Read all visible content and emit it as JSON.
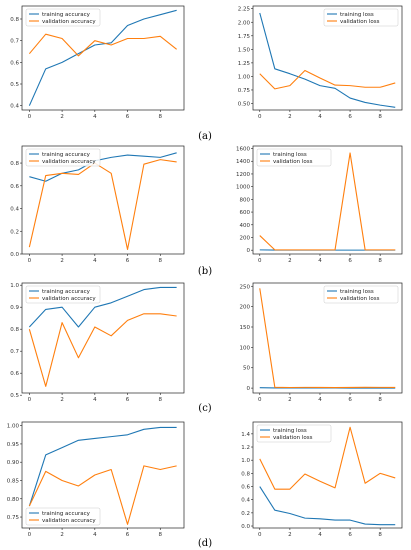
{
  "figure": {
    "captions": [
      "(a)",
      "(b)",
      "(c)",
      "(d)"
    ]
  },
  "colors": {
    "training": "#1f77b4",
    "validation": "#ff7f0e"
  },
  "chart_data": [
    {
      "type": "line",
      "panel": "(a)",
      "side": "left",
      "x": [
        0,
        1,
        2,
        3,
        4,
        5,
        6,
        7,
        8,
        9
      ],
      "xticks": [
        "0",
        "2",
        "4",
        "6",
        "8"
      ],
      "yticks": [
        "0.4",
        "0.5",
        "0.6",
        "0.7",
        "0.8"
      ],
      "ylim": [
        0.38,
        0.86
      ],
      "legend": "top-left",
      "series": [
        {
          "name": "training accuracy",
          "color": "#1f77b4",
          "values": [
            0.4,
            0.57,
            0.6,
            0.64,
            0.68,
            0.69,
            0.77,
            0.8,
            0.82,
            0.84
          ]
        },
        {
          "name": "validation accuracy",
          "color": "#ff7f0e",
          "values": [
            0.64,
            0.73,
            0.71,
            0.63,
            0.7,
            0.68,
            0.71,
            0.71,
            0.72,
            0.66
          ]
        }
      ]
    },
    {
      "type": "line",
      "panel": "(a)",
      "side": "right",
      "x": [
        0,
        1,
        2,
        3,
        4,
        5,
        6,
        7,
        8,
        9
      ],
      "xticks": [
        "0",
        "2",
        "4",
        "6",
        "8"
      ],
      "yticks": [
        "0.50",
        "0.75",
        "1.00",
        "1.25",
        "1.50",
        "1.75",
        "2.00",
        "2.25"
      ],
      "ylim": [
        0.38,
        2.3
      ],
      "legend": "top-right",
      "series": [
        {
          "name": "training loss",
          "color": "#1f77b4",
          "values": [
            2.17,
            1.14,
            1.05,
            0.95,
            0.83,
            0.78,
            0.6,
            0.52,
            0.47,
            0.43
          ]
        },
        {
          "name": "validation loss",
          "color": "#ff7f0e",
          "values": [
            1.05,
            0.77,
            0.83,
            1.11,
            0.97,
            0.84,
            0.83,
            0.8,
            0.8,
            0.88
          ]
        }
      ]
    },
    {
      "type": "line",
      "panel": "(b)",
      "side": "left",
      "x": [
        0,
        1,
        2,
        3,
        4,
        5,
        6,
        7,
        8,
        9
      ],
      "xticks": [
        "0",
        "2",
        "4",
        "6",
        "8"
      ],
      "yticks": [
        "0.0",
        "0.2",
        "0.4",
        "0.6",
        "0.8"
      ],
      "ylim": [
        0.0,
        0.95
      ],
      "legend": "top-left",
      "series": [
        {
          "name": "training accuracy",
          "color": "#1f77b4",
          "values": [
            0.68,
            0.64,
            0.71,
            0.74,
            0.82,
            0.85,
            0.87,
            0.86,
            0.85,
            0.89
          ]
        },
        {
          "name": "validation accuracy",
          "color": "#ff7f0e",
          "values": [
            0.06,
            0.69,
            0.71,
            0.7,
            0.8,
            0.71,
            0.04,
            0.79,
            0.83,
            0.81
          ]
        }
      ]
    },
    {
      "type": "line",
      "panel": "(b)",
      "side": "right",
      "x": [
        0,
        1,
        2,
        3,
        4,
        5,
        6,
        7,
        8,
        9
      ],
      "xticks": [
        "0",
        "2",
        "4",
        "6",
        "8"
      ],
      "yticks": [
        "0",
        "200",
        "400",
        "600",
        "800",
        "1000",
        "1200",
        "1400",
        "1600"
      ],
      "ylim": [
        -60,
        1640
      ],
      "legend": "top-left",
      "series": [
        {
          "name": "training loss",
          "color": "#1f77b4",
          "values": [
            5,
            2,
            1,
            1,
            1,
            1,
            1,
            1,
            1,
            1
          ]
        },
        {
          "name": "validation loss",
          "color": "#ff7f0e",
          "values": [
            230,
            5,
            5,
            5,
            5,
            5,
            1530,
            5,
            5,
            5
          ]
        }
      ]
    },
    {
      "type": "line",
      "panel": "(c)",
      "side": "left",
      "x": [
        0,
        1,
        2,
        3,
        4,
        5,
        6,
        7,
        8,
        9
      ],
      "xticks": [
        "0",
        "2",
        "4",
        "6",
        "8"
      ],
      "yticks": [
        "0.5",
        "0.6",
        "0.7",
        "0.8",
        "0.9",
        "1.0"
      ],
      "ylim": [
        0.51,
        1.01
      ],
      "legend": "top-left",
      "series": [
        {
          "name": "training accuracy",
          "color": "#1f77b4",
          "values": [
            0.81,
            0.89,
            0.9,
            0.81,
            0.9,
            0.92,
            0.95,
            0.98,
            0.99,
            0.99
          ]
        },
        {
          "name": "validation accuracy",
          "color": "#ff7f0e",
          "values": [
            0.8,
            0.54,
            0.83,
            0.67,
            0.81,
            0.77,
            0.84,
            0.87,
            0.87,
            0.86
          ]
        }
      ]
    },
    {
      "type": "line",
      "panel": "(c)",
      "side": "right",
      "x": [
        0,
        1,
        2,
        3,
        4,
        5,
        6,
        7,
        8,
        9
      ],
      "xticks": [
        "0",
        "2",
        "4",
        "6",
        "8"
      ],
      "yticks": [
        "0",
        "50",
        "100",
        "150",
        "200",
        "250"
      ],
      "ylim": [
        -12,
        258
      ],
      "legend": "top-right",
      "series": [
        {
          "name": "training loss",
          "color": "#1f77b4",
          "values": [
            1.0,
            0.5,
            0.4,
            0.3,
            0.3,
            0.3,
            0.2,
            0.2,
            0.1,
            0.1
          ]
        },
        {
          "name": "validation loss",
          "color": "#ff7f0e",
          "values": [
            245,
            2.0,
            1.5,
            1.8,
            1.6,
            1.4,
            1.7,
            1.9,
            1.8,
            1.7
          ]
        }
      ]
    },
    {
      "type": "line",
      "panel": "(d)",
      "side": "left",
      "x": [
        0,
        1,
        2,
        3,
        4,
        5,
        6,
        7,
        8,
        9
      ],
      "xticks": [
        "0",
        "2",
        "4",
        "6",
        "8"
      ],
      "yticks": [
        "0.75",
        "0.80",
        "0.85",
        "0.90",
        "0.95",
        "1.00"
      ],
      "ylim": [
        0.72,
        1.01
      ],
      "legend": "bottom-left",
      "series": [
        {
          "name": "training accuracy",
          "color": "#1f77b4",
          "values": [
            0.78,
            0.92,
            0.94,
            0.96,
            0.965,
            0.97,
            0.975,
            0.99,
            0.995,
            0.995
          ]
        },
        {
          "name": "validation accuracy",
          "color": "#ff7f0e",
          "values": [
            0.78,
            0.875,
            0.85,
            0.835,
            0.865,
            0.88,
            0.73,
            0.89,
            0.88,
            0.89
          ]
        }
      ]
    },
    {
      "type": "line",
      "panel": "(d)",
      "side": "right",
      "x": [
        0,
        1,
        2,
        3,
        4,
        5,
        6,
        7,
        8,
        9
      ],
      "xticks": [
        "0",
        "2",
        "4",
        "6",
        "8"
      ],
      "yticks": [
        "0.0",
        "0.2",
        "0.4",
        "0.6",
        "0.8",
        "1.0",
        "1.2",
        "1.4"
      ],
      "ylim": [
        -0.03,
        1.58
      ],
      "legend": "top-left",
      "series": [
        {
          "name": "training loss",
          "color": "#1f77b4",
          "values": [
            0.6,
            0.24,
            0.19,
            0.12,
            0.11,
            0.09,
            0.09,
            0.03,
            0.02,
            0.02
          ]
        },
        {
          "name": "validation loss",
          "color": "#ff7f0e",
          "values": [
            1.02,
            0.56,
            0.56,
            0.79,
            0.68,
            0.58,
            1.5,
            0.65,
            0.8,
            0.73
          ]
        }
      ]
    }
  ]
}
